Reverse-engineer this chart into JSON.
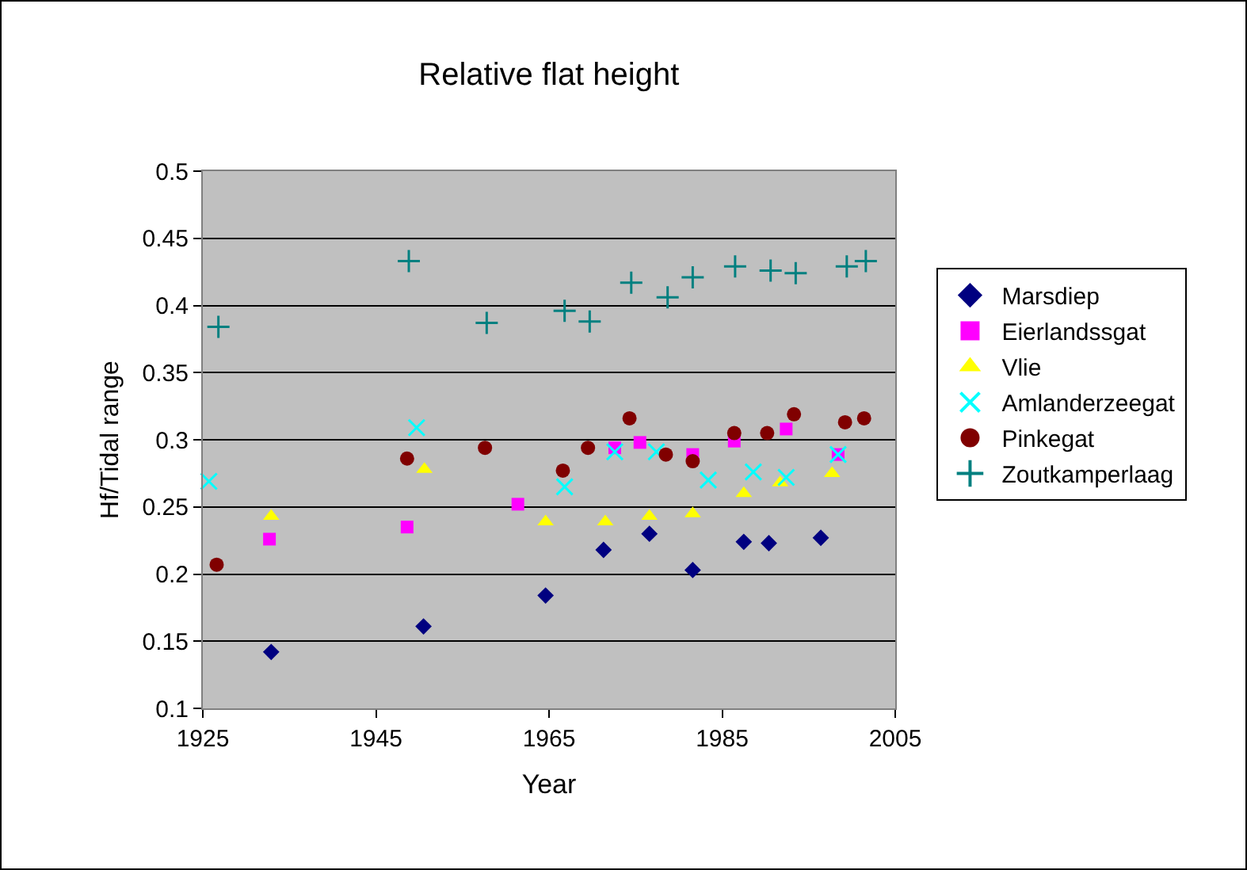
{
  "chart_data": {
    "type": "scatter",
    "title": "Relative flat height",
    "xlabel": "Year",
    "ylabel": "Hf/Tidal range",
    "xlim": [
      1925,
      2005
    ],
    "xticks": [
      1925,
      1945,
      1965,
      1985,
      2005
    ],
    "ylim": [
      0.1,
      0.5
    ],
    "yticks": [
      0.1,
      0.15,
      0.2,
      0.25,
      0.3,
      0.35,
      0.4,
      0.45,
      0.5
    ],
    "grid": "y",
    "legend": "right",
    "series": [
      {
        "name": "Marsdiep",
        "color": "#000080",
        "marker": "diamond",
        "x": [
          1932.9,
          1950.5,
          1964.6,
          1971.3,
          1976.6,
          1981.6,
          1987.5,
          1990.4,
          1996.4
        ],
        "values": [
          0.142,
          0.161,
          0.184,
          0.218,
          0.23,
          0.203,
          0.224,
          0.223,
          0.227
        ]
      },
      {
        "name": "Eierlandssgat",
        "color": "#ff00ff",
        "marker": "square",
        "x": [
          1932.7,
          1948.6,
          1961.4,
          1972.6,
          1975.5,
          1981.6,
          1986.4,
          1992.4,
          1998.4
        ],
        "values": [
          0.226,
          0.235,
          0.252,
          0.294,
          0.298,
          0.289,
          0.299,
          0.308,
          0.289
        ]
      },
      {
        "name": "Vlie",
        "color": "#ffff00",
        "marker": "triangle",
        "x": [
          1932.9,
          1950.6,
          1964.6,
          1971.5,
          1976.6,
          1981.6,
          1987.5,
          1991.7,
          1997.7
        ],
        "values": [
          0.243,
          0.278,
          0.239,
          0.239,
          0.243,
          0.245,
          0.26,
          0.268,
          0.275
        ]
      },
      {
        "name": "Amlanderzeegat",
        "color": "#00ffff",
        "marker": "x",
        "x": [
          1925.7,
          1949.7,
          1966.8,
          1972.6,
          1977.4,
          1983.4,
          1988.6,
          1992.4,
          1998.4
        ],
        "values": [
          0.269,
          0.309,
          0.265,
          0.291,
          0.291,
          0.27,
          0.276,
          0.272,
          0.289
        ]
      },
      {
        "name": "Pinkegat",
        "color": "#800000",
        "marker": "circle",
        "x": [
          1926.6,
          1948.6,
          1957.6,
          1966.6,
          1969.5,
          1974.3,
          1978.5,
          1981.6,
          1986.4,
          1990.2,
          1993.3,
          1999.2,
          2001.4
        ],
        "values": [
          0.207,
          0.286,
          0.294,
          0.277,
          0.294,
          0.316,
          0.289,
          0.284,
          0.305,
          0.305,
          0.319,
          0.313,
          0.316
        ]
      },
      {
        "name": "Zoutkamperlaag",
        "color": "#008080",
        "marker": "cross",
        "x": [
          1926.8,
          1948.8,
          1957.8,
          1966.8,
          1969.7,
          1974.5,
          1978.7,
          1981.6,
          1986.5,
          1990.6,
          1993.5,
          1999.4,
          2001.6
        ],
        "values": [
          0.384,
          0.433,
          0.387,
          0.396,
          0.388,
          0.417,
          0.406,
          0.421,
          0.429,
          0.426,
          0.424,
          0.429,
          0.433
        ]
      }
    ]
  }
}
